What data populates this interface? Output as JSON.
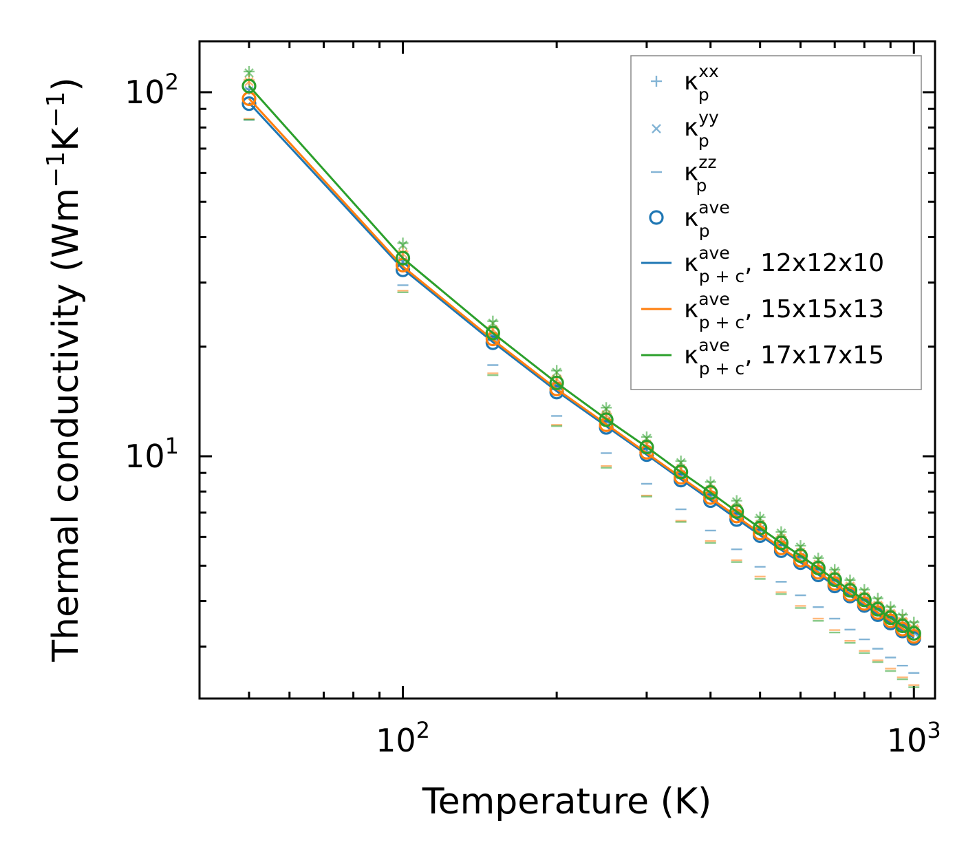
{
  "chart_data": {
    "type": "scatter",
    "title": "",
    "xlabel": "Temperature (K)",
    "ylabel": {
      "base": "Thermal conductivity (Wm",
      "sup1": "−1",
      "mid": "K",
      "sup2": "−1",
      "end": ")"
    },
    "xscale": "log",
    "yscale": "log",
    "xlim": [
      40,
      1100
    ],
    "ylim": [
      2.16,
      138
    ],
    "x_ticks": [
      {
        "base": "10",
        "exp": "2",
        "value": 100
      },
      {
        "base": "10",
        "exp": "3",
        "value": 1000
      }
    ],
    "y_ticks": [
      {
        "base": "10",
        "exp": "1",
        "value": 10
      },
      {
        "base": "10",
        "exp": "2",
        "value": 100
      }
    ],
    "x": [
      50,
      100,
      150,
      200,
      250,
      300,
      350,
      400,
      450,
      500,
      550,
      600,
      650,
      700,
      750,
      800,
      850,
      900,
      950,
      1000
    ],
    "series": [
      {
        "name": "12x12x10",
        "color": "#1f77b4",
        "kxx": [
          102.0,
          34.5,
          21.5,
          15.8,
          12.6,
          10.5,
          9.0,
          7.9,
          7.0,
          6.35,
          5.8,
          5.35,
          4.95,
          4.62,
          4.32,
          4.07,
          3.85,
          3.65,
          3.47,
          3.31
        ],
        "kyy": [
          101.0,
          34.2,
          21.3,
          15.6,
          12.5,
          10.4,
          8.9,
          7.8,
          6.95,
          6.3,
          5.75,
          5.3,
          4.9,
          4.57,
          4.28,
          4.03,
          3.81,
          3.61,
          3.44,
          3.28
        ],
        "kzz": [
          84.0,
          29.5,
          17.8,
          12.9,
          10.2,
          8.4,
          7.15,
          6.25,
          5.55,
          4.97,
          4.52,
          4.15,
          3.85,
          3.58,
          3.34,
          3.14,
          2.96,
          2.8,
          2.66,
          2.54
        ],
        "kave": [
          93.0,
          32.5,
          20.5,
          15.0,
          12.0,
          10.1,
          8.6,
          7.55,
          6.7,
          6.05,
          5.5,
          5.1,
          4.72,
          4.4,
          4.13,
          3.89,
          3.67,
          3.48,
          3.31,
          3.16
        ],
        "kpc": [
          93.5,
          32.7,
          20.6,
          15.1,
          12.1,
          10.1,
          8.65,
          7.58,
          6.73,
          6.07,
          5.53,
          5.11,
          4.73,
          4.42,
          4.14,
          3.9,
          3.68,
          3.49,
          3.32,
          3.17
        ]
      },
      {
        "name": "15x15x13",
        "color": "#ff7f0e",
        "kxx": [
          108.0,
          36.5,
          22.6,
          16.5,
          13.1,
          10.9,
          9.35,
          8.2,
          7.3,
          6.55,
          6.0,
          5.5,
          5.1,
          4.75,
          4.45,
          4.18,
          3.95,
          3.75,
          3.57,
          3.4
        ],
        "kyy": [
          107.0,
          36.0,
          22.3,
          16.3,
          13.0,
          10.8,
          9.25,
          8.1,
          7.2,
          6.5,
          5.95,
          5.45,
          5.05,
          4.7,
          4.4,
          4.13,
          3.9,
          3.7,
          3.52,
          3.36
        ],
        "kzz": [
          84.5,
          28.5,
          16.9,
          12.2,
          9.4,
          7.8,
          6.65,
          5.85,
          5.18,
          4.67,
          4.23,
          3.88,
          3.58,
          3.33,
          3.11,
          2.92,
          2.75,
          2.61,
          2.47,
          2.35
        ],
        "kave": [
          96.0,
          33.5,
          21.0,
          15.3,
          12.2,
          10.25,
          8.75,
          7.7,
          6.85,
          6.15,
          5.6,
          5.18,
          4.8,
          4.47,
          4.18,
          3.94,
          3.72,
          3.53,
          3.35,
          3.2
        ],
        "kpc": [
          96.0,
          33.2,
          20.9,
          15.3,
          12.25,
          10.2,
          8.75,
          7.68,
          6.83,
          6.15,
          5.6,
          5.17,
          4.8,
          4.47,
          4.19,
          3.94,
          3.72,
          3.53,
          3.36,
          3.2
        ]
      },
      {
        "name": "17x17x15",
        "color": "#2ca02c",
        "kxx": [
          114.0,
          38.5,
          23.5,
          17.2,
          13.6,
          11.3,
          9.7,
          8.5,
          7.55,
          6.8,
          6.2,
          5.68,
          5.25,
          4.88,
          4.57,
          4.3,
          4.07,
          3.86,
          3.67,
          3.5
        ],
        "kyy": [
          113.0,
          38.0,
          23.2,
          17.0,
          13.5,
          11.2,
          9.6,
          8.4,
          7.5,
          6.75,
          6.15,
          5.63,
          5.2,
          4.83,
          4.52,
          4.25,
          4.02,
          3.81,
          3.62,
          3.45
        ],
        "kzz": [
          84.0,
          28.2,
          16.7,
          12.1,
          9.3,
          7.75,
          6.6,
          5.78,
          5.12,
          4.6,
          4.18,
          3.83,
          3.53,
          3.28,
          3.07,
          2.88,
          2.72,
          2.57,
          2.44,
          2.32
        ],
        "kave": [
          104.0,
          35.0,
          21.8,
          15.9,
          12.6,
          10.6,
          9.05,
          7.95,
          7.05,
          6.35,
          5.78,
          5.33,
          4.93,
          4.58,
          4.28,
          4.03,
          3.8,
          3.6,
          3.42,
          3.26
        ],
        "kpc": [
          104.0,
          35.0,
          21.8,
          15.9,
          12.65,
          10.6,
          9.05,
          7.95,
          7.05,
          6.35,
          5.78,
          5.33,
          4.93,
          4.58,
          4.28,
          4.03,
          3.8,
          3.6,
          3.42,
          3.26
        ]
      }
    ],
    "legend": {
      "placement": "top-right",
      "entries": [
        {
          "marker": "plus",
          "sym": "κ",
          "sub": "p",
          "sup": "xx",
          "suffix": ""
        },
        {
          "marker": "x",
          "sym": "κ",
          "sub": "p",
          "sup": "yy",
          "suffix": ""
        },
        {
          "marker": "dash",
          "sym": "κ",
          "sub": "p",
          "sup": "zz",
          "suffix": ""
        },
        {
          "marker": "circle",
          "sym": "κ",
          "sub": "p",
          "sup": "ave",
          "suffix": ""
        },
        {
          "marker": "line-blue",
          "sym": "κ",
          "sub": "p + c",
          "sup": "ave",
          "suffix": ", 12x12x10"
        },
        {
          "marker": "line-orange",
          "sym": "κ",
          "sub": "p + c",
          "sup": "ave",
          "suffix": ", 15x15x13"
        },
        {
          "marker": "line-green",
          "sym": "κ",
          "sub": "p + c",
          "sup": "ave",
          "suffix": ", 17x17x15"
        }
      ]
    }
  }
}
